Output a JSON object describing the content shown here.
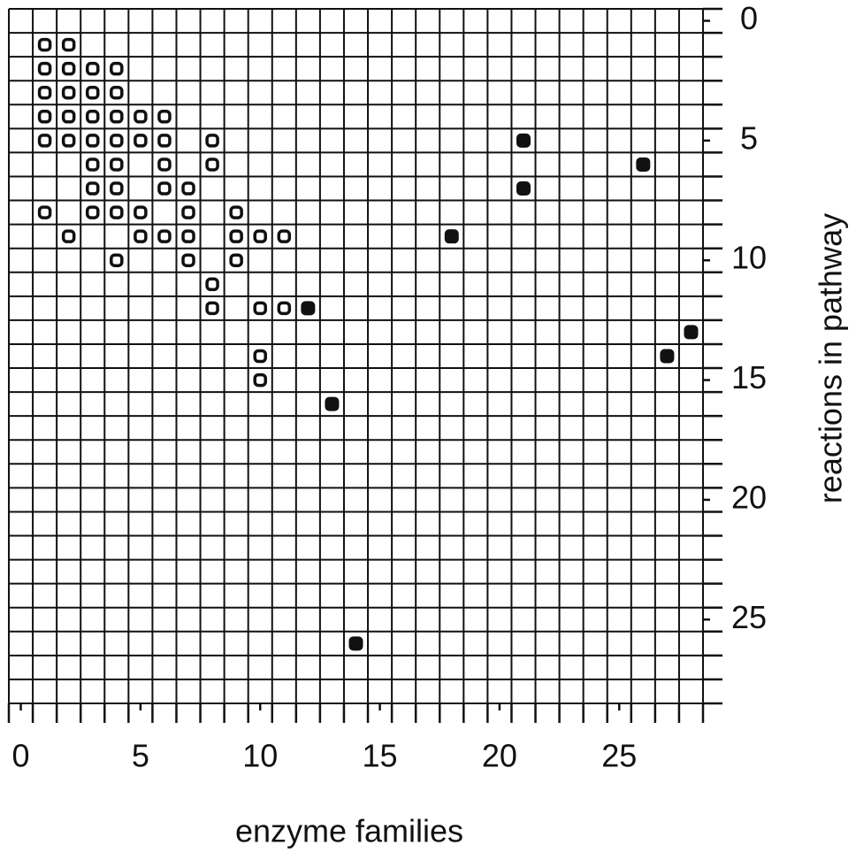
{
  "chart_data": {
    "type": "scatter",
    "x_label": "enzyme families",
    "y_label": "reactions in pathway",
    "xlim": [
      -0.5,
      28.5
    ],
    "ylim": [
      -0.5,
      28.5
    ],
    "y_reversed": true,
    "xticks": [
      0,
      5,
      10,
      15,
      20,
      25
    ],
    "yticks": [
      0,
      5,
      10,
      15,
      20,
      25
    ],
    "grid": true,
    "series": [
      {
        "color": "#111111",
        "marker": "hollow",
        "x": [
          1,
          2,
          1,
          2,
          3,
          4,
          1,
          2,
          3,
          4,
          1,
          2,
          3,
          4,
          5,
          6,
          1,
          2,
          3,
          4,
          5,
          6,
          8,
          3,
          4,
          6,
          8,
          3,
          4,
          6,
          7,
          1,
          3,
          4,
          5,
          7,
          9,
          2,
          5,
          6,
          7,
          9,
          10,
          11,
          4,
          7,
          9,
          8,
          8,
          10,
          11,
          10,
          10
        ],
        "values": [
          1,
          1,
          2,
          2,
          2,
          2,
          3,
          3,
          3,
          3,
          4,
          4,
          4,
          4,
          4,
          4,
          5,
          5,
          5,
          5,
          5,
          5,
          5,
          6,
          6,
          6,
          6,
          7,
          7,
          7,
          7,
          8,
          8,
          8,
          8,
          8,
          8,
          9,
          9,
          9,
          9,
          9,
          9,
          9,
          10,
          10,
          10,
          11,
          12,
          12,
          12,
          14,
          15
        ]
      },
      {
        "color": "#111111",
        "marker": "filled",
        "x": [
          21,
          26,
          21,
          18,
          12,
          28,
          27,
          13,
          14
        ],
        "values": [
          5,
          6,
          7,
          9,
          12,
          13,
          14,
          16,
          26
        ]
      }
    ]
  }
}
